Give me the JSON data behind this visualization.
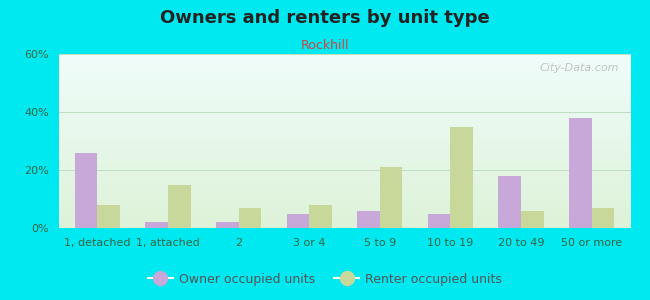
{
  "title": "Owners and renters by unit type",
  "subtitle": "Rockhill",
  "categories": [
    "1, detached",
    "1, attached",
    "2",
    "3 or 4",
    "5 to 9",
    "10 to 19",
    "20 to 49",
    "50 or more"
  ],
  "owner_values": [
    26,
    2,
    2,
    5,
    6,
    5,
    18,
    38
  ],
  "renter_values": [
    8,
    15,
    7,
    8,
    21,
    35,
    6,
    7
  ],
  "owner_color": "#c8a8d8",
  "renter_color": "#c8d89a",
  "ylim": [
    0,
    60
  ],
  "yticks": [
    0,
    20,
    40,
    60
  ],
  "ytick_labels": [
    "0%",
    "20%",
    "40%",
    "60%"
  ],
  "figure_bg": "#00e8f0",
  "watermark": "City-Data.com",
  "title_fontsize": 13,
  "subtitle_fontsize": 9,
  "tick_fontsize": 8,
  "legend_fontsize": 9
}
